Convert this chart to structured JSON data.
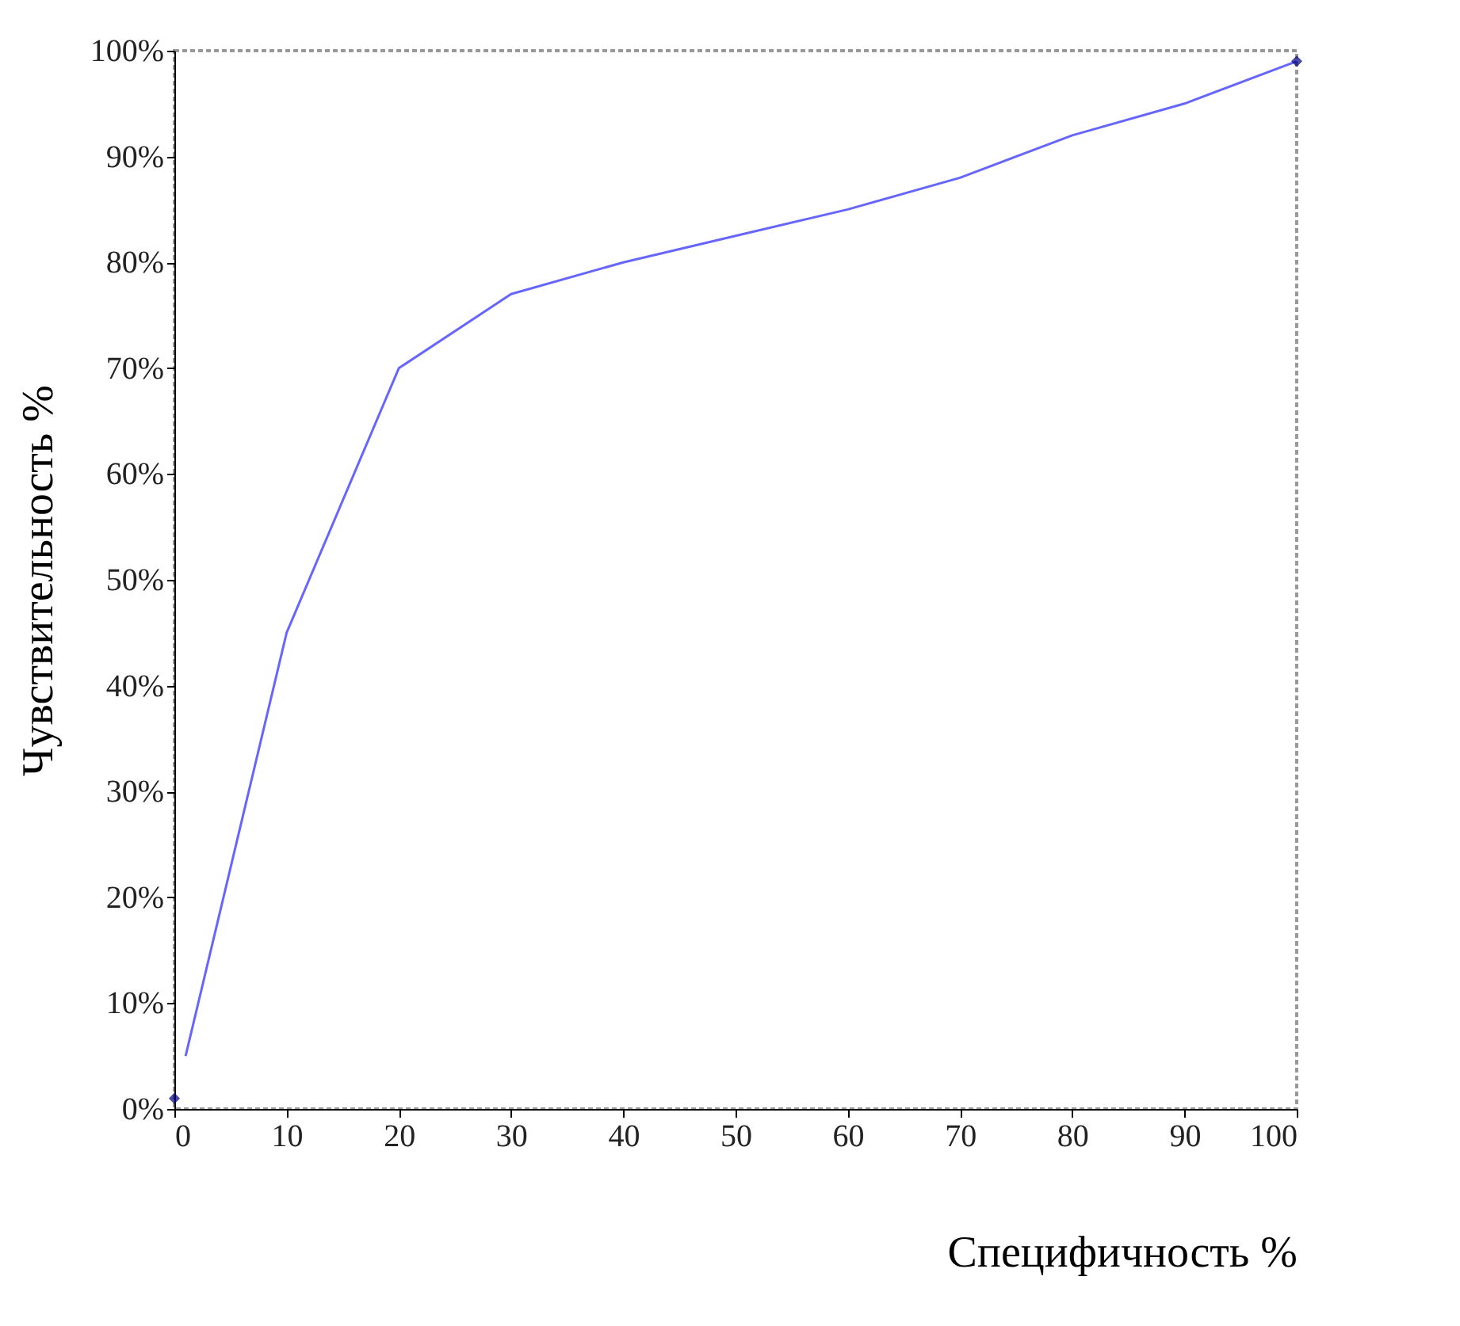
{
  "chart_data": {
    "type": "line",
    "xlabel": "Специфичность %",
    "ylabel": "Чувствительность %",
    "xlim": [
      0,
      100
    ],
    "xticks": [
      0,
      10,
      20,
      30,
      40,
      50,
      60,
      70,
      80,
      90,
      100
    ],
    "ylim": [
      0,
      100
    ],
    "yticks": [
      {
        "value": 0,
        "label": "0%"
      },
      {
        "value": 10,
        "label": "10%"
      },
      {
        "value": 20,
        "label": "20%"
      },
      {
        "value": 30,
        "label": "30%"
      },
      {
        "value": 40,
        "label": "40%"
      },
      {
        "value": 50,
        "label": "50%"
      },
      {
        "value": 60,
        "label": "60%"
      },
      {
        "value": 70,
        "label": "70%"
      },
      {
        "value": 80,
        "label": "80%"
      },
      {
        "value": 90,
        "label": "90%"
      },
      {
        "value": 100,
        "label": "100%"
      }
    ],
    "grid": false,
    "series": [
      {
        "color": "#6666ff",
        "marker": "none",
        "x": [
          1,
          10,
          20,
          30,
          40,
          50,
          60,
          70,
          80,
          90,
          100
        ],
        "values": [
          5,
          45,
          70,
          77,
          80,
          82.5,
          85,
          88,
          92,
          95,
          99
        ]
      },
      {
        "type": "scatter",
        "color": "#000080",
        "marker": "diamond",
        "x": [
          0,
          100
        ],
        "values": [
          1,
          99
        ]
      }
    ]
  }
}
